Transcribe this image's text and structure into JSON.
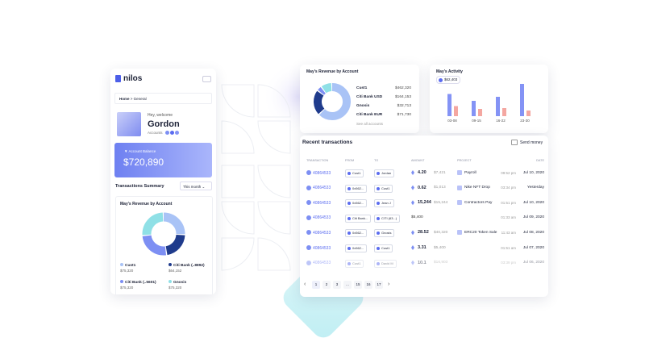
{
  "mobile": {
    "brand": "nilos",
    "breadcrumb": [
      "Home",
      "General"
    ],
    "greeting": "Hey, welcome",
    "name": "Gordon",
    "accounts_label": "Accounts",
    "balance_label": "Account Balance",
    "balance": "$720,890",
    "summary_title": "Transactions Summary",
    "period": "This month",
    "revenue_title": "May's Revenue by Account",
    "accounts": [
      {
        "name": "Cust1",
        "amount": "$75,320",
        "value": 75320,
        "color": "#a9c3f6"
      },
      {
        "name": "Citi Bank (..8892)",
        "amount": "$64,152",
        "value": 64152,
        "color": "#1f3b8c"
      },
      {
        "name": "Citi Bank (..5601)",
        "amount": "$75,320",
        "value": 75320,
        "color": "#7d8ff3"
      },
      {
        "name": "Gnosis",
        "amount": "$75,320",
        "value": 75320,
        "color": "#8fe0e6"
      }
    ]
  },
  "revenue": {
    "title": "May's Revenue by Account",
    "accounts": [
      {
        "name": "Cust1",
        "amount": "$462,320",
        "value": 462320,
        "color": "#a9c3f6"
      },
      {
        "name": "Citi Bank USD",
        "amount": "$164,153",
        "value": 164153,
        "color": "#1f3b8c"
      },
      {
        "name": "Gnosis",
        "amount": "$32,713",
        "value": 32713,
        "color": "#7d8ff3"
      },
      {
        "name": "Citi Bank EUR",
        "amount": "$71,730",
        "value": 71730,
        "color": "#8fe0e6"
      }
    ],
    "link": "See all accounts"
  },
  "activity": {
    "title": "May's Activity",
    "badge": "$62,403",
    "categories": [
      "03-08",
      "09-15",
      "16-22",
      "23-30"
    ],
    "series": [
      {
        "color": "#8493f5",
        "values": [
          55,
          38,
          48,
          80
        ]
      },
      {
        "color": "#f4a7a1",
        "values": [
          25,
          18,
          20,
          14
        ]
      }
    ]
  },
  "transactions": {
    "title": "Recent transactions",
    "action": "Send money",
    "columns": [
      "TRANSACTION",
      "FROM",
      "TO",
      "AMOUNT",
      "PROJECT",
      "DATE"
    ],
    "rows": [
      {
        "id": "40864533",
        "from": "Cust1",
        "to": "Jordan",
        "token": "4.20",
        "usd": "$7,421",
        "project": "Payroll",
        "time": "09:52 pm",
        "date": "Jul 10, 2020"
      },
      {
        "id": "40864533",
        "from": "0x562...",
        "to": "Cust1",
        "token": "0.62",
        "usd": "$1,013",
        "project": "Nike NFT Drop",
        "time": "03:34 pm",
        "date": "Yesterday"
      },
      {
        "id": "40864533",
        "from": "0x562...",
        "to": "Jean J",
        "token": "15,244",
        "usd": "$15,244",
        "project": "Contractors Pay",
        "time": "01:51 pm",
        "date": "Jul 10, 2020"
      },
      {
        "id": "40864533",
        "from": "Citi Bank...",
        "to": "CITI (63...)",
        "token": null,
        "usd": "$5,400",
        "project": null,
        "time": "01:33 am",
        "date": "Jul 09, 2020"
      },
      {
        "id": "40864533",
        "from": "0x562...",
        "to": "Gnosis",
        "token": "28.52",
        "usd": "$40,320",
        "project": "ERC20 Token Sale",
        "time": "11:43 am",
        "date": "Jul 08, 2020"
      },
      {
        "id": "40864533",
        "from": "0x562...",
        "to": "Cust1",
        "token": "3.31",
        "usd": "$5,400",
        "project": null,
        "time": "01:51 am",
        "date": "Jul 07, 2020"
      },
      {
        "id": "40864533",
        "from": "Cust1",
        "to": "David M",
        "token": "10.1",
        "usd": "$16,903",
        "project": null,
        "time": "03:39 pm",
        "date": "Jul 06, 2020"
      }
    ],
    "pages": [
      "1",
      "2",
      "3",
      "...",
      "15",
      "16",
      "17"
    ]
  }
}
